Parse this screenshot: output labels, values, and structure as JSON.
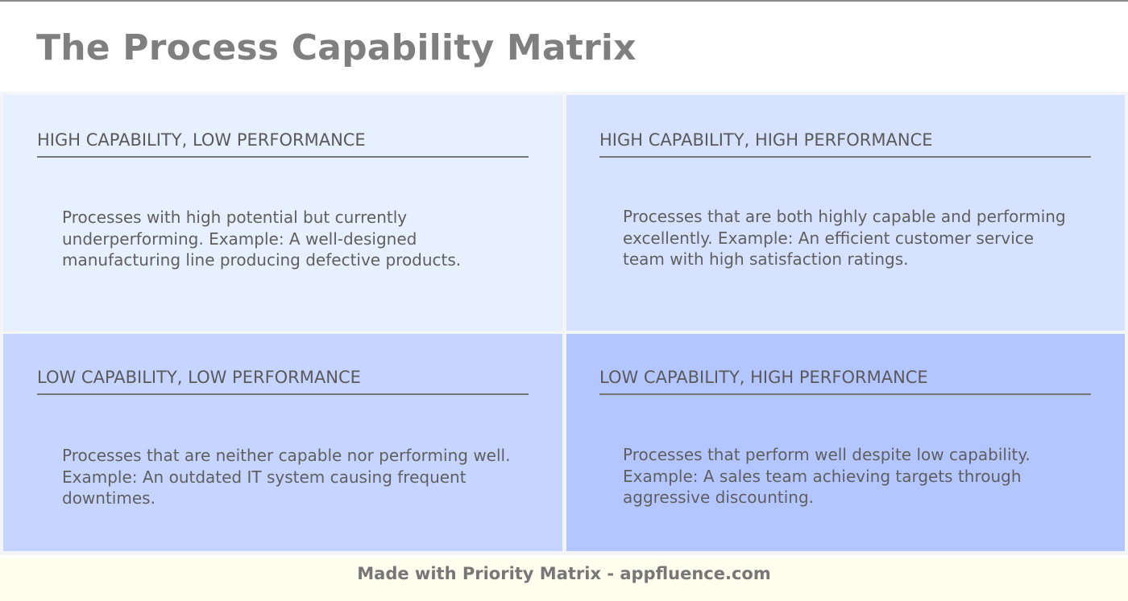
{
  "title": "The Process Capability Matrix",
  "quadrants": [
    {
      "position": "top-left",
      "heading": "HIGH CAPABILITY, LOW PERFORMANCE",
      "description": "Processes with high potential but currently underperforming. Example: A well-designed manufacturing line producing defective products.",
      "color": "#e6f0ff"
    },
    {
      "position": "top-right",
      "heading": "HIGH CAPABILITY, HIGH PERFORMANCE",
      "description": "Processes that are both highly capable and performing excellently. Example: An efficient customer service team with high satisfaction ratings.",
      "color": "#d6e2ff"
    },
    {
      "position": "bottom-left",
      "heading": "LOW CAPABILITY, LOW PERFORMANCE",
      "description": "Processes that are neither capable nor performing well. Example: An outdated IT system causing frequent downtimes.",
      "color": "#c6d5ff"
    },
    {
      "position": "bottom-right",
      "heading": "LOW CAPABILITY, HIGH PERFORMANCE",
      "description": "Processes that perform well despite low capability. Example: A sales team achieving targets through aggressive discounting.",
      "color": "#b4c6ff"
    }
  ],
  "footer": {
    "text": "Made with Priority Matrix - appfluence.com",
    "background": "#fdfeee"
  }
}
